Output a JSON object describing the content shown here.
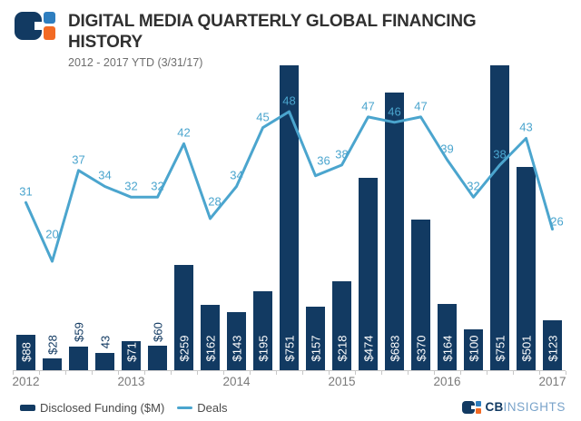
{
  "header": {
    "title_lines": [
      "DIGITAL MEDIA QUARTERLY GLOBAL FINANCING",
      "HISTORY"
    ],
    "subtitle": "2012 - 2017 YTD (3/31/17)"
  },
  "legend": {
    "bar_label": "Disclosed Funding ($M)",
    "line_label": "Deals"
  },
  "footer": {
    "brand_bold": "CB",
    "brand_light": "INSIGHTS"
  },
  "colors": {
    "navy": "#123A62",
    "lineBlue": "#4BA5CE",
    "orange": "#F26A24",
    "logoBlue": "#2E7EBF",
    "titleColor": "#303030",
    "subtitleColor": "#6E6E6E",
    "axisColor": "#C8C8C8",
    "yearColor": "#7A7A7A",
    "legendText": "#4A4A4A",
    "insightsBlue": "#79A3CA"
  },
  "chart_data": {
    "type": "bar",
    "subtype": "bar+line combo",
    "title": "Digital Media Quarterly Global Financing History",
    "subtitle": "2012 - 2017 YTD (3/31/17)",
    "categories": [
      "Q1 2012",
      "Q2 2012",
      "Q3 2012",
      "Q4 2012",
      "Q1 2013",
      "Q2 2013",
      "Q3 2013",
      "Q4 2013",
      "Q1 2014",
      "Q2 2014",
      "Q3 2014",
      "Q4 2014",
      "Q1 2015",
      "Q2 2015",
      "Q3 2015",
      "Q4 2015",
      "Q1 2016",
      "Q2 2016",
      "Q3 2016",
      "Q4 2016",
      "Q1 2017"
    ],
    "series": [
      {
        "name": "Disclosed Funding ($M)",
        "type": "bar",
        "values": [
          88,
          28,
          59,
          43,
          71,
          60,
          259,
          162,
          143,
          195,
          751,
          157,
          218,
          474,
          683,
          370,
          164,
          100,
          751,
          501,
          123
        ],
        "labels": [
          "$88",
          "$28",
          "$59",
          "43",
          "$71",
          "$60",
          "$259",
          "$162",
          "$143",
          "$195",
          "$751",
          "$157",
          "$218",
          "$474",
          "$683",
          "$370",
          "$164",
          "$100",
          "$751",
          "$501",
          "$123"
        ]
      },
      {
        "name": "Deals",
        "type": "line",
        "values": [
          31,
          20,
          37,
          34,
          32,
          32,
          42,
          28,
          34,
          45,
          48,
          36,
          38,
          47,
          46,
          47,
          39,
          32,
          38,
          43,
          26
        ]
      }
    ],
    "x_axis": {
      "tick_years": [
        "2012",
        "2013",
        "2014",
        "2015",
        "2016",
        "2017"
      ],
      "tick_quarter_index": [
        0,
        4,
        8,
        12,
        16,
        20
      ]
    },
    "y_axis": {
      "visible": false
    },
    "grid": false,
    "legend_position": "bottom-left"
  }
}
